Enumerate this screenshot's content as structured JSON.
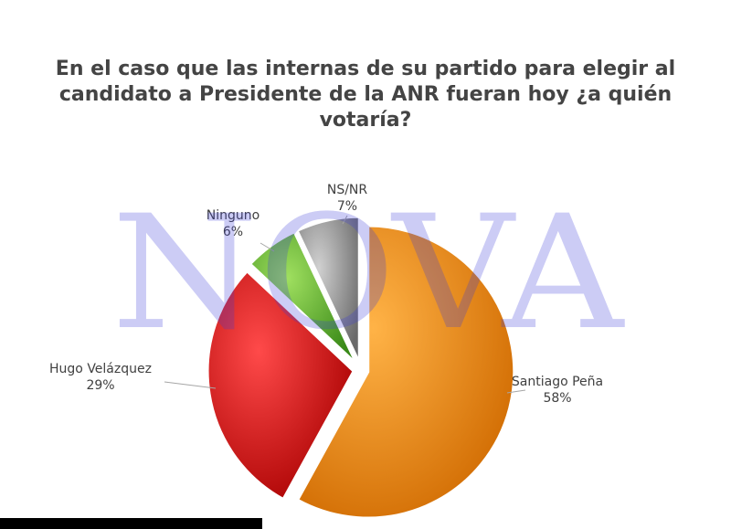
{
  "title": "En el caso que las internas de su partido para elegir al candidato a Presidente de la ANR fueran hoy ¿a quién votaría?",
  "watermark": "NOVA",
  "chart_data": {
    "type": "pie",
    "title": "En el caso que las internas de su partido para elegir al candidato a Presidente de la ANR fueran hoy ¿a quién votaría?",
    "slices": [
      {
        "label": "Santiago Peña",
        "value": 58,
        "display": "58%",
        "color": "#f28c00"
      },
      {
        "label": "Hugo Velázquez",
        "value": 29,
        "display": "29%",
        "color": "#e01010"
      },
      {
        "label": "Ninguno",
        "value": 6,
        "display": "6%",
        "color": "#5fb32a"
      },
      {
        "label": "NS/NR",
        "value": 7,
        "display": "7%",
        "color": "#8c8c8c"
      }
    ],
    "legend": "none",
    "data_labels": "outside"
  }
}
